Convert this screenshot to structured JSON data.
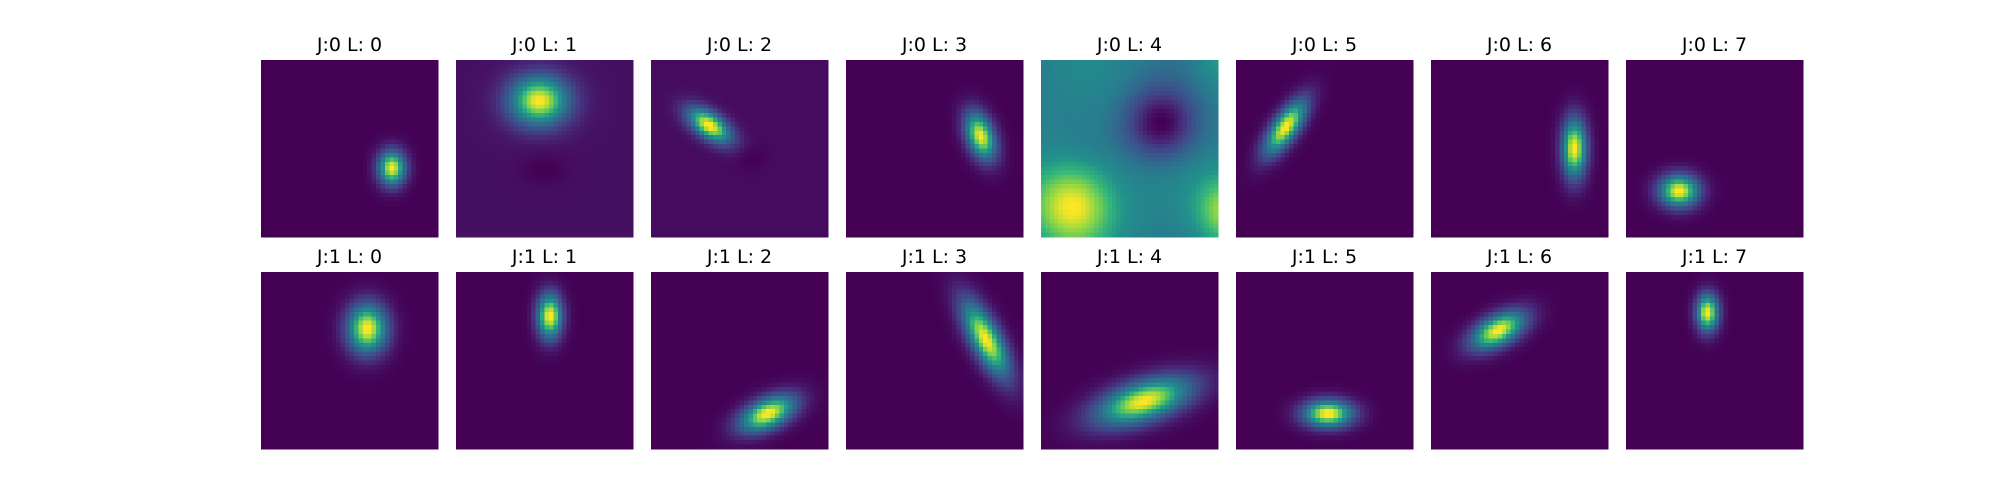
{
  "chart_data": {
    "type": "heatmap",
    "colormap": "viridis",
    "colors": {
      "background": "#440154",
      "peak": "#fde725",
      "mid": "#21918c"
    },
    "rows": 2,
    "cols": 8,
    "panels": [
      {
        "title": "J:0 L: 0",
        "blobs": [
          {
            "x": 0.74,
            "y": 0.61,
            "sx": 0.055,
            "sy": 0.07,
            "angle": 0
          }
        ]
      },
      {
        "title": "J:0 L: 1",
        "base": 0.06,
        "blobs": [
          {
            "x": 0.47,
            "y": 0.23,
            "sx": 0.12,
            "sy": 0.1,
            "angle": 0
          },
          {
            "x": 0.5,
            "y": 0.62,
            "sx": 0.1,
            "sy": 0.07,
            "angle": 0,
            "amp": -0.06
          }
        ]
      },
      {
        "title": "J:0 L: 2",
        "base": 0.05,
        "blobs": [
          {
            "x": 0.33,
            "y": 0.37,
            "sx": 0.1,
            "sy": 0.05,
            "angle": 35
          },
          {
            "x": 0.56,
            "y": 0.55,
            "sx": 0.06,
            "sy": 0.05,
            "angle": 0,
            "amp": -0.05
          }
        ]
      },
      {
        "title": "J:0 L: 3",
        "blobs": [
          {
            "x": 0.76,
            "y": 0.43,
            "sx": 0.055,
            "sy": 0.1,
            "angle": -20
          }
        ]
      },
      {
        "title": "J:0 L: 4",
        "mode": "wave"
      },
      {
        "title": "J:0 L: 5",
        "blobs": [
          {
            "x": 0.28,
            "y": 0.38,
            "sx": 0.05,
            "sy": 0.13,
            "angle": 35
          }
        ]
      },
      {
        "title": "J:0 L: 6",
        "blobs": [
          {
            "x": 0.81,
            "y": 0.5,
            "sx": 0.05,
            "sy": 0.12,
            "angle": 0
          }
        ]
      },
      {
        "title": "J:0 L: 7",
        "blobs": [
          {
            "x": 0.3,
            "y": 0.74,
            "sx": 0.08,
            "sy": 0.065,
            "angle": 0
          }
        ]
      },
      {
        "title": "J:1 L: 0",
        "blobs": [
          {
            "x": 0.6,
            "y": 0.32,
            "sx": 0.08,
            "sy": 0.1,
            "angle": 0
          }
        ]
      },
      {
        "title": "J:1 L: 1",
        "blobs": [
          {
            "x": 0.53,
            "y": 0.25,
            "sx": 0.05,
            "sy": 0.09,
            "angle": 0
          }
        ]
      },
      {
        "title": "J:1 L: 2",
        "blobs": [
          {
            "x": 0.66,
            "y": 0.8,
            "sx": 0.12,
            "sy": 0.06,
            "angle": -25
          }
        ]
      },
      {
        "title": "J:1 L: 3",
        "blobs": [
          {
            "x": 0.79,
            "y": 0.38,
            "sx": 0.06,
            "sy": 0.17,
            "angle": -28
          }
        ]
      },
      {
        "title": "J:1 L: 4",
        "base": 0.03,
        "blobs": [
          {
            "x": 0.58,
            "y": 0.73,
            "sx": 0.2,
            "sy": 0.08,
            "angle": -18
          }
        ]
      },
      {
        "title": "J:1 L: 5",
        "blobs": [
          {
            "x": 0.52,
            "y": 0.8,
            "sx": 0.1,
            "sy": 0.055,
            "angle": 0
          }
        ]
      },
      {
        "title": "J:1 L: 6",
        "blobs": [
          {
            "x": 0.38,
            "y": 0.33,
            "sx": 0.12,
            "sy": 0.06,
            "angle": -28
          }
        ]
      },
      {
        "title": "J:1 L: 7",
        "blobs": [
          {
            "x": 0.46,
            "y": 0.23,
            "sx": 0.045,
            "sy": 0.075,
            "angle": 0
          }
        ]
      }
    ]
  }
}
